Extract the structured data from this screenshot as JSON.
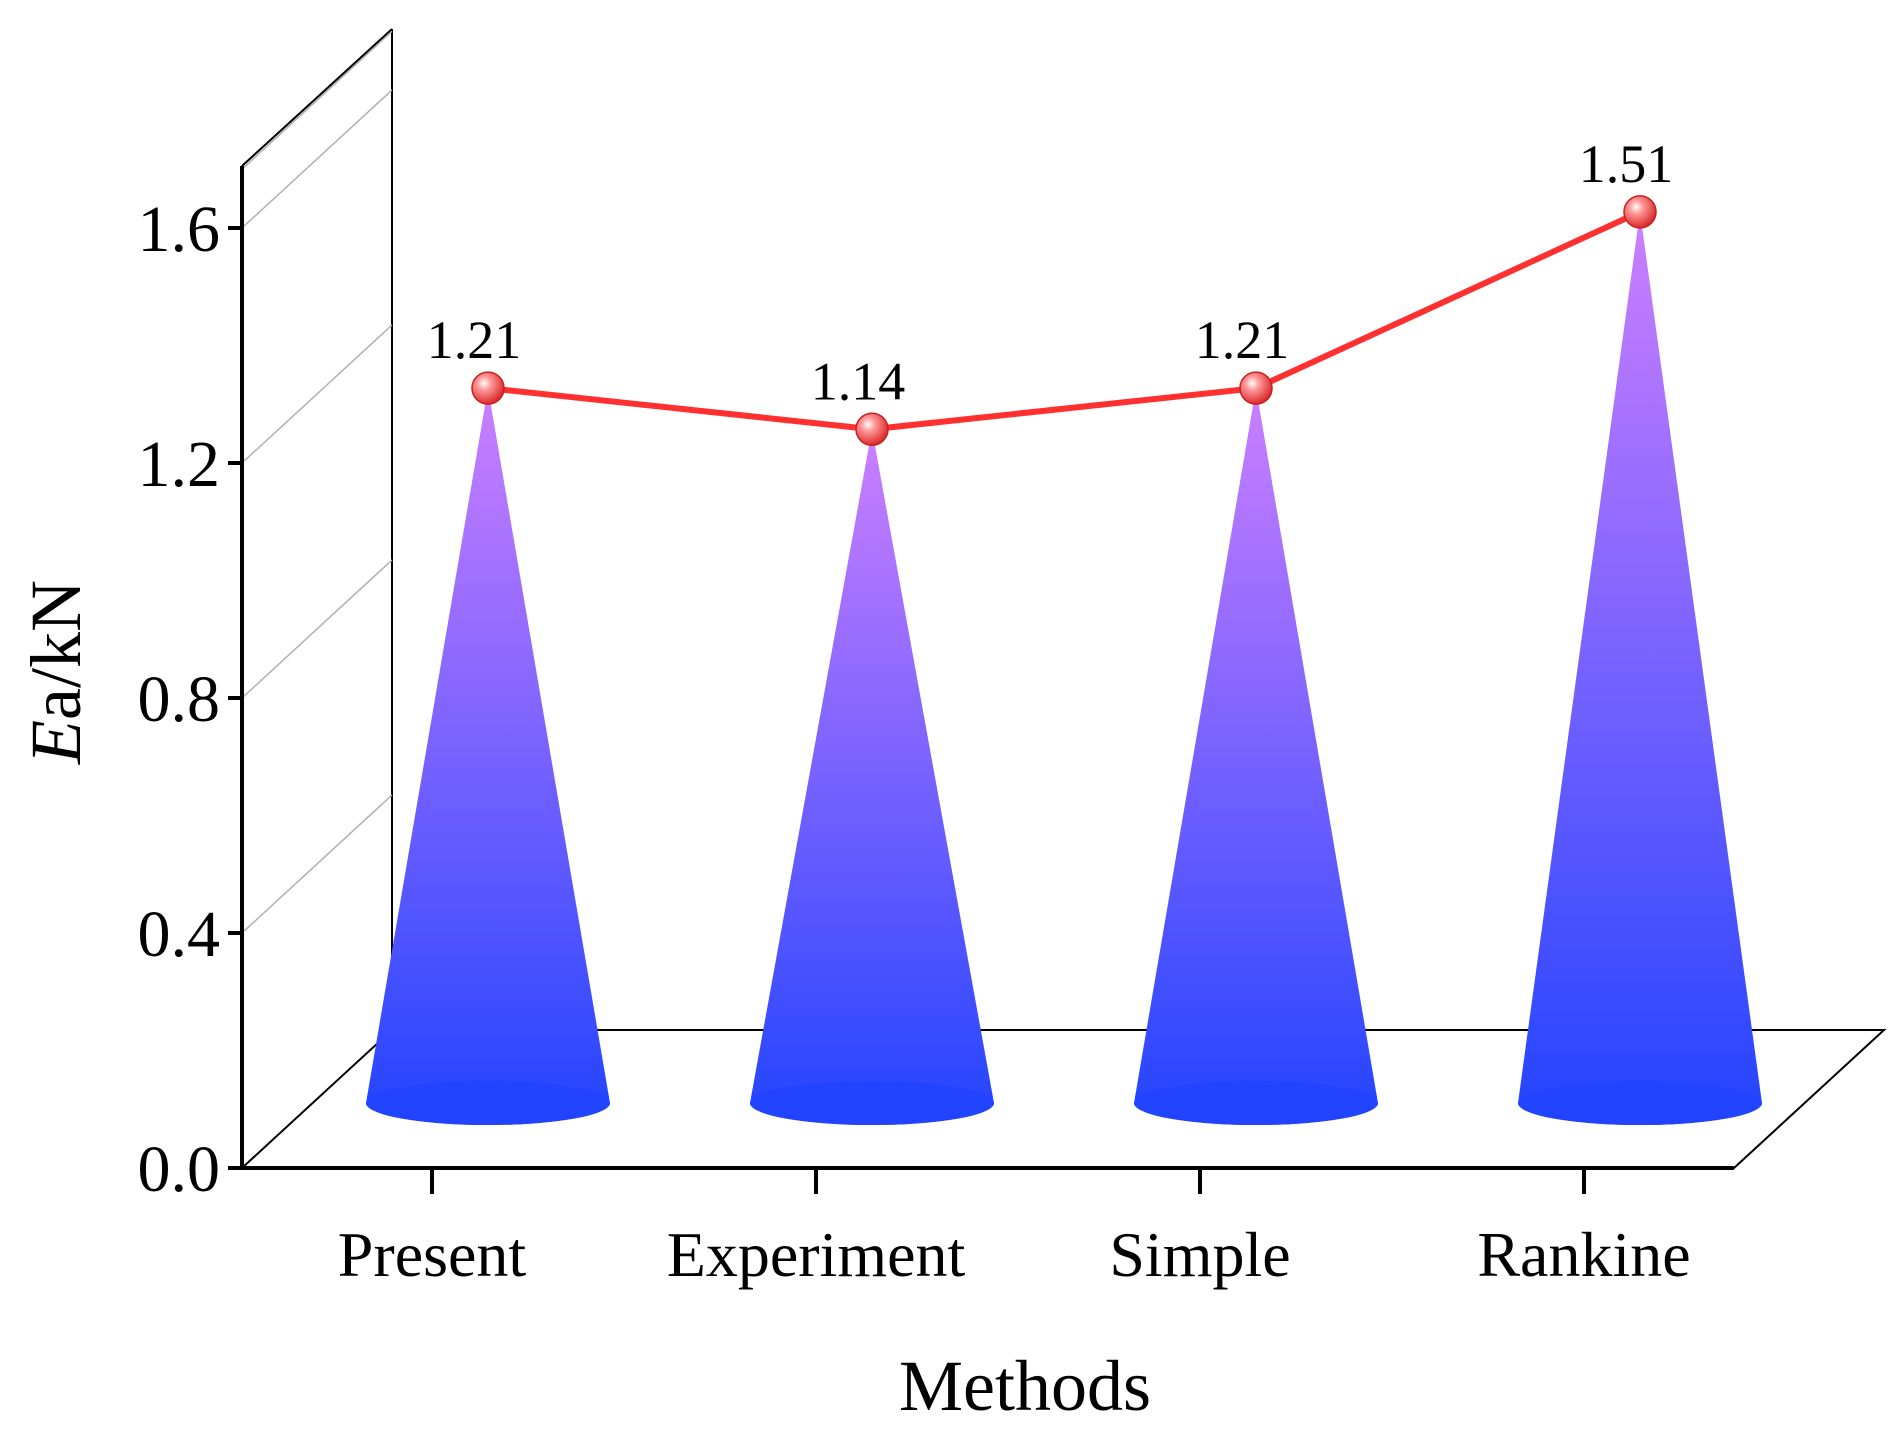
{
  "chart_data": {
    "type": "3d-cone-bar-with-line",
    "title": "",
    "xlabel": "Methods",
    "ylabel_italic": "E",
    "ylabel_rest": "a/kN",
    "ylim": [
      0.0,
      1.7
    ],
    "yticks": [
      "0.0",
      "0.4",
      "0.8",
      "1.2",
      "1.6"
    ],
    "ytick_values": [
      0.0,
      0.4,
      0.8,
      1.2,
      1.6
    ],
    "categories": [
      "Present",
      "Experiment",
      "Simple",
      "Rankine"
    ],
    "series": [
      {
        "name": "Ea",
        "values": [
          1.21,
          1.14,
          1.21,
          1.51
        ],
        "labels": [
          "1.21",
          "1.14",
          "1.21",
          "1.51"
        ]
      }
    ],
    "grid": true,
    "colors": {
      "cone_top": "#cc7fff",
      "cone_bottom": "#2244ff",
      "line": "#ff3030",
      "marker": "#ff5a5a"
    }
  }
}
